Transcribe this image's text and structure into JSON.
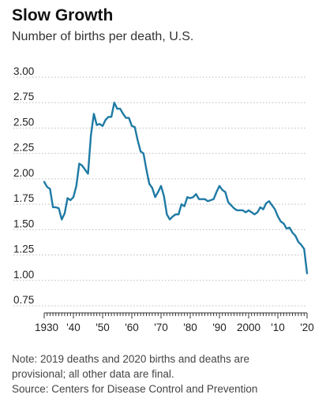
{
  "header": {
    "title": "Slow Growth",
    "subtitle": "Number of births per death, U.S."
  },
  "footer": {
    "note_line1": "Note: 2019 deaths and 2020 births and deaths are",
    "note_line2": "provisional; all other data are final.",
    "source": "Source: Centers for Disease Control and Prevention"
  },
  "colors": {
    "line": "#1f7aa5",
    "grid": "#bbbbbb",
    "text": "#222222"
  },
  "chart_data": {
    "type": "line",
    "title": "Slow Growth",
    "subtitle": "Number of births per death, U.S.",
    "xlabel": "",
    "ylabel": "",
    "xlim": [
      1930,
      2020
    ],
    "ylim": [
      0.75,
      3.0
    ],
    "grid": "horizontal dotted",
    "yticks": [
      3.0,
      2.75,
      2.5,
      2.25,
      2.0,
      1.75,
      1.5,
      1.25,
      1.0,
      0.75
    ],
    "ytick_labels": [
      "3.00",
      "2.75",
      "2.50",
      "2.25",
      "2.00",
      "1.75",
      "1.50",
      "1.25",
      "1.00",
      "0.75"
    ],
    "xticks": [
      1930,
      1940,
      1950,
      1960,
      1970,
      1980,
      1990,
      2000,
      2010,
      2020
    ],
    "xtick_labels": [
      "1930",
      "'40",
      "'50",
      "'60",
      "'70",
      "'80",
      "'90",
      "2000",
      "'10",
      "'20"
    ],
    "series": [
      {
        "x": [
          1930,
          1931,
          1932,
          1933,
          1934,
          1935,
          1936,
          1937,
          1938,
          1939,
          1940,
          1941,
          1942,
          1943,
          1944,
          1945,
          1946,
          1947,
          1948,
          1949,
          1950,
          1951,
          1952,
          1953,
          1954,
          1955,
          1956,
          1957,
          1958,
          1959,
          1960,
          1961,
          1962,
          1963,
          1964,
          1965,
          1966,
          1967,
          1968,
          1969,
          1970,
          1971,
          1972,
          1973,
          1974,
          1975,
          1976,
          1977,
          1978,
          1979,
          1980,
          1981,
          1982,
          1983,
          1984,
          1985,
          1986,
          1987,
          1988,
          1989,
          1990,
          1991,
          1992,
          1993,
          1994,
          1995,
          1996,
          1997,
          1998,
          1999,
          2000,
          2001,
          2002,
          2003,
          2004,
          2005,
          2006,
          2007,
          2008,
          2009,
          2010,
          2011,
          2012,
          2013,
          2014,
          2015,
          2016,
          2017,
          2018,
          2019,
          2020
        ],
        "values": [
          1.97,
          1.92,
          1.9,
          1.72,
          1.72,
          1.71,
          1.6,
          1.66,
          1.81,
          1.79,
          1.82,
          1.93,
          2.15,
          2.13,
          2.09,
          2.05,
          2.43,
          2.64,
          2.53,
          2.54,
          2.52,
          2.58,
          2.61,
          2.61,
          2.75,
          2.69,
          2.69,
          2.64,
          2.6,
          2.6,
          2.52,
          2.51,
          2.38,
          2.27,
          2.25,
          2.09,
          1.95,
          1.91,
          1.82,
          1.87,
          1.93,
          1.83,
          1.65,
          1.6,
          1.63,
          1.65,
          1.65,
          1.75,
          1.73,
          1.82,
          1.81,
          1.82,
          1.85,
          1.8,
          1.8,
          1.8,
          1.78,
          1.79,
          1.8,
          1.87,
          1.93,
          1.89,
          1.87,
          1.77,
          1.74,
          1.71,
          1.69,
          1.69,
          1.69,
          1.67,
          1.69,
          1.67,
          1.65,
          1.67,
          1.72,
          1.7,
          1.76,
          1.78,
          1.74,
          1.7,
          1.63,
          1.58,
          1.56,
          1.51,
          1.52,
          1.47,
          1.44,
          1.38,
          1.35,
          1.31,
          1.07
        ]
      }
    ]
  }
}
